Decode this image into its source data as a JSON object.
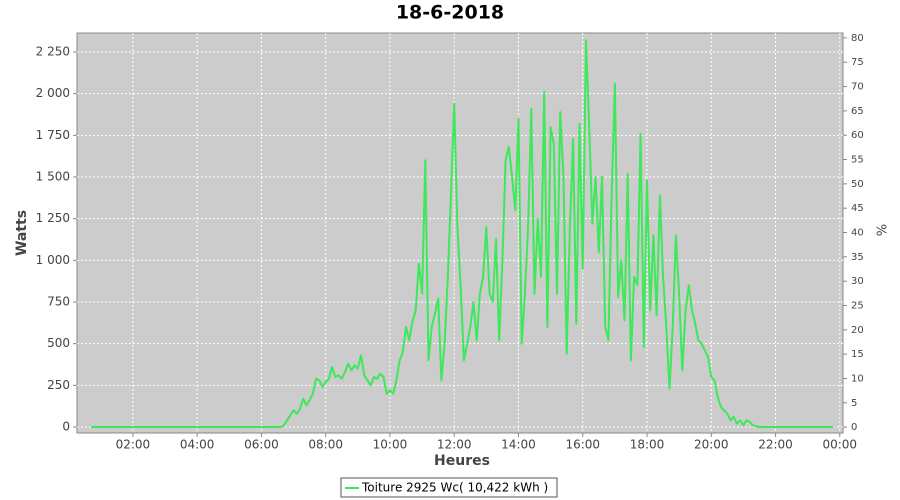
{
  "chart_data": {
    "type": "line",
    "title": "18-6-2018",
    "xlabel": "Heures",
    "ylabel": "Watts",
    "y2label": "%",
    "x": [
      0.7,
      6.6,
      6.7,
      6.8,
      6.9,
      7.0,
      7.1,
      7.2,
      7.3,
      7.4,
      7.5,
      7.6,
      7.7,
      7.8,
      7.9,
      8.0,
      8.1,
      8.2,
      8.3,
      8.4,
      8.5,
      8.6,
      8.7,
      8.8,
      8.9,
      9.0,
      9.1,
      9.2,
      9.3,
      9.4,
      9.5,
      9.6,
      9.7,
      9.8,
      9.9,
      10.0,
      10.1,
      10.2,
      10.3,
      10.4,
      10.5,
      10.6,
      10.7,
      10.8,
      10.9,
      11.0,
      11.1,
      11.2,
      11.3,
      11.4,
      11.5,
      11.6,
      11.7,
      11.8,
      11.9,
      12.0,
      12.1,
      12.2,
      12.3,
      12.4,
      12.5,
      12.6,
      12.7,
      12.8,
      12.9,
      13.0,
      13.1,
      13.2,
      13.3,
      13.4,
      13.5,
      13.6,
      13.7,
      13.8,
      13.9,
      14.0,
      14.1,
      14.2,
      14.3,
      14.4,
      14.5,
      14.6,
      14.7,
      14.8,
      14.9,
      15.0,
      15.1,
      15.2,
      15.3,
      15.4,
      15.5,
      15.6,
      15.7,
      15.8,
      15.9,
      16.0,
      16.1,
      16.2,
      16.3,
      16.4,
      16.5,
      16.6,
      16.7,
      16.8,
      16.9,
      17.0,
      17.1,
      17.2,
      17.3,
      17.4,
      17.5,
      17.6,
      17.7,
      17.8,
      17.9,
      18.0,
      18.1,
      18.2,
      18.3,
      18.4,
      18.5,
      18.6,
      18.7,
      18.8,
      18.9,
      19.0,
      19.1,
      19.2,
      19.3,
      19.4,
      19.5,
      19.6,
      19.7,
      19.8,
      19.9,
      20.0,
      20.1,
      20.2,
      20.3,
      20.4,
      20.5,
      20.6,
      20.7,
      20.8,
      20.9,
      21.0,
      21.1,
      21.2,
      21.3,
      21.4,
      21.5,
      21.6,
      23.8
    ],
    "series": [
      {
        "name": "Toiture 2925 Wc( 10,422 kWh )",
        "color": "#3de85a",
        "values": [
          0,
          0,
          10,
          40,
          70,
          100,
          80,
          110,
          170,
          130,
          160,
          200,
          290,
          280,
          240,
          270,
          290,
          360,
          300,
          310,
          290,
          330,
          380,
          340,
          370,
          350,
          430,
          310,
          280,
          250,
          300,
          290,
          320,
          300,
          200,
          220,
          200,
          280,
          400,
          450,
          600,
          520,
          630,
          700,
          980,
          800,
          1600,
          400,
          600,
          680,
          770,
          280,
          500,
          900,
          1400,
          1940,
          1200,
          850,
          400,
          500,
          600,
          750,
          520,
          800,
          900,
          1200,
          800,
          750,
          1130,
          520,
          1000,
          1600,
          1680,
          1500,
          1300,
          1850,
          500,
          800,
          1200,
          1910,
          800,
          1250,
          900,
          2010,
          600,
          1800,
          1700,
          800,
          1890,
          1500,
          440,
          1200,
          1730,
          620,
          1820,
          950,
          2320,
          1800,
          1220,
          1500,
          1050,
          1500,
          600,
          520,
          1400,
          2060,
          780,
          1000,
          640,
          1520,
          400,
          900,
          850,
          1760,
          480,
          1480,
          700,
          1150,
          670,
          1390,
          900,
          600,
          230,
          600,
          1150,
          800,
          340,
          700,
          850,
          700,
          620,
          520,
          500,
          460,
          420,
          300,
          280,
          180,
          120,
          100,
          80,
          40,
          60,
          20,
          40,
          10,
          40,
          30,
          10,
          5,
          0,
          0,
          0
        ]
      }
    ],
    "xlim": [
      0.26,
      24.1
    ],
    "xticks": [
      {
        "value": 2,
        "label": "02:00"
      },
      {
        "value": 4,
        "label": "04:00"
      },
      {
        "value": 6,
        "label": "06:00"
      },
      {
        "value": 8,
        "label": "08:00"
      },
      {
        "value": 10,
        "label": "10:00"
      },
      {
        "value": 12,
        "label": "12:00"
      },
      {
        "value": 14,
        "label": "14:00"
      },
      {
        "value": 16,
        "label": "16:00"
      },
      {
        "value": 18,
        "label": "18:00"
      },
      {
        "value": 20,
        "label": "20:00"
      },
      {
        "value": 22,
        "label": "22:00"
      },
      {
        "value": 24,
        "label": "00:00"
      }
    ],
    "ylim": [
      -36,
      2364
    ],
    "yticks": [
      0,
      250,
      500,
      750,
      {
        "value": 1000,
        "label": "1 000"
      },
      {
        "value": 1250,
        "label": "1 250"
      },
      {
        "value": 1500,
        "label": "1 500"
      },
      {
        "value": 1750,
        "label": "1 750"
      },
      {
        "value": 2000,
        "label": "2 000"
      },
      {
        "value": 2250,
        "label": "2 250"
      }
    ],
    "y2lim": [
      -1.2,
      81
    ],
    "y2ticks": [
      0,
      5,
      10,
      15,
      20,
      25,
      30,
      35,
      40,
      45,
      50,
      55,
      60,
      65,
      70,
      75,
      80
    ],
    "grid": true,
    "legend": "bottom"
  }
}
